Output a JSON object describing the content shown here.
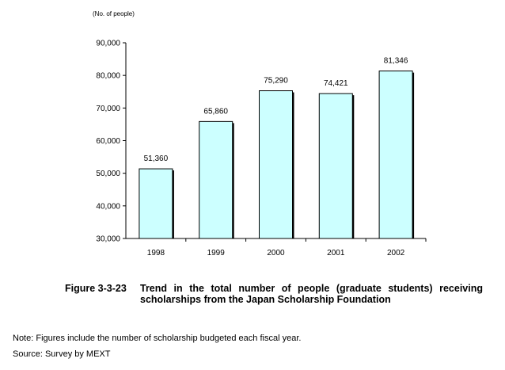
{
  "chart_data": {
    "type": "bar",
    "unit_label": "(No. of people)",
    "categories": [
      "1998",
      "1999",
      "2000",
      "2001",
      "2002"
    ],
    "values": [
      51360,
      65860,
      75290,
      74421,
      81346
    ],
    "value_labels": [
      "51,360",
      "65,860",
      "75,290",
      "74,421",
      "81,346"
    ],
    "ylim": [
      30000,
      90000
    ],
    "yticks": [
      30000,
      40000,
      50000,
      60000,
      70000,
      80000,
      90000
    ],
    "ytick_labels": [
      "30,000",
      "40,000",
      "50,000",
      "60,000",
      "70,000",
      "80,000",
      "90,000"
    ],
    "grid": false,
    "legend": "none"
  },
  "caption": {
    "number": "Figure 3-3-23",
    "text": "Trend in the total number of people (graduate students) receiving scholarships from the Japan Scholarship Foundation"
  },
  "note": "Note: Figures include the number of scholarship budgeted each fiscal year.",
  "source": "Source: Survey by MEXT",
  "colors": {
    "bar_fill": "#CCFFFF",
    "bar_stroke": "#000000",
    "bar_shadow": "#000000"
  }
}
